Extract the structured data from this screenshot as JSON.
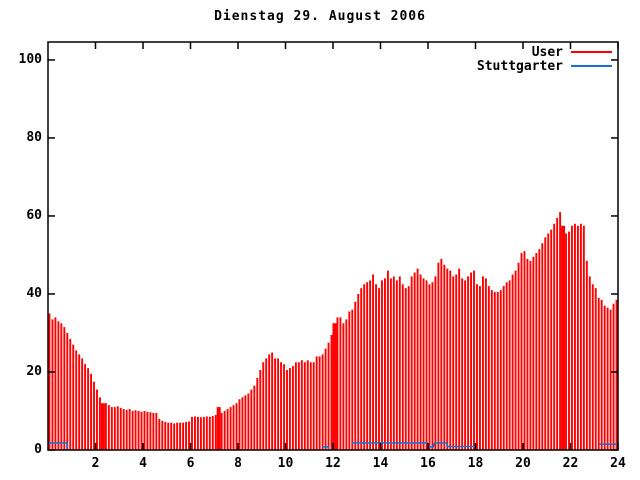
{
  "chart_data": {
    "type": "bar",
    "title": "Dienstag 29. August 2006",
    "xlabel": "",
    "ylabel": "",
    "xlim": [
      0,
      24
    ],
    "ylim": [
      0,
      104.6
    ],
    "grid": false,
    "legend_position": "top-right-inside",
    "xticks": [
      2,
      4,
      6,
      8,
      10,
      12,
      14,
      16,
      18,
      20,
      22,
      24
    ],
    "yticks": [
      0,
      20,
      40,
      60,
      80,
      100
    ],
    "sample_interval_hours": 0.125,
    "legend": [
      {
        "label": "User",
        "color": "#ff0000"
      },
      {
        "label": "Stuttgarter",
        "color": "#1874cd"
      }
    ],
    "series": [
      {
        "name": "User",
        "style": "impulses",
        "color": "#ff0000",
        "values": [
          35,
          33.5,
          34,
          33,
          32.5,
          31.5,
          30,
          28.5,
          27,
          25.5,
          24.5,
          23.5,
          22,
          21,
          19.5,
          17.5,
          15.5,
          13.5,
          12,
          12,
          11.5,
          11,
          11,
          11.2,
          10.8,
          10.5,
          10.3,
          10.5,
          10,
          10.2,
          10,
          9.8,
          10,
          9.8,
          9.7,
          9.5,
          9.5,
          8,
          7.5,
          7.2,
          7,
          7,
          6.8,
          7,
          7,
          7,
          7.2,
          7.3,
          8.5,
          8.6,
          8.5,
          8.4,
          8.5,
          8.6,
          8.5,
          8.7,
          9,
          11,
          9.5,
          10,
          10.5,
          11,
          11.5,
          12,
          13,
          13.5,
          14,
          14.5,
          15.5,
          16.5,
          18.5,
          20.5,
          22.5,
          23.5,
          24.5,
          25,
          23.5,
          23.5,
          22.5,
          22,
          20.5,
          21,
          21.5,
          22.5,
          22.5,
          23,
          22.5,
          23,
          22.5,
          22.5,
          24,
          24,
          24.5,
          26,
          27.5,
          29.5,
          32.5,
          34,
          34,
          32.5,
          33.5,
          35.5,
          36,
          38,
          40,
          41.5,
          42.5,
          43,
          43.5,
          45,
          42.5,
          41.5,
          43.5,
          44,
          46,
          44,
          44.5,
          43.5,
          44.5,
          42.5,
          41.5,
          42,
          44.5,
          45.5,
          46.5,
          45,
          44,
          43.5,
          42.5,
          43,
          44.5,
          48,
          49,
          47.5,
          46.5,
          46,
          44.5,
          45,
          46.5,
          44,
          43.5,
          44.5,
          45.5,
          46,
          42.5,
          42,
          44.5,
          44,
          42,
          41,
          40.5,
          40.5,
          41,
          42,
          43,
          43.5,
          45,
          46,
          48,
          50.5,
          51,
          49,
          48.5,
          49.5,
          50.5,
          51.5,
          53,
          54.5,
          55.5,
          56.5,
          58,
          59.5,
          61,
          57.5,
          55.5,
          56,
          57.5,
          58,
          57.5,
          58,
          57.5,
          48.5,
          44.5,
          42.5,
          41.5,
          39,
          38.5,
          37,
          36.5,
          36,
          37.5,
          38.5
        ],
        "bold_marker_indices": [
          18,
          57,
          96,
          173
        ]
      },
      {
        "name": "Stuttgarter",
        "style": "steps",
        "color": "#1874cd",
        "segments_hour_start_end_value": [
          [
            0,
            0.8,
            1.8
          ],
          [
            11.55,
            11.8,
            0.8
          ],
          [
            12.8,
            16.0,
            1.8
          ],
          [
            16.0,
            16.25,
            0.8
          ],
          [
            16.25,
            16.8,
            1.8
          ],
          [
            16.8,
            18.0,
            0.9
          ],
          [
            23.2,
            24.0,
            1.5
          ]
        ]
      }
    ]
  },
  "colors": {
    "background": "#ffffff",
    "text": "#000000",
    "axis": "#000000",
    "user_series": "#ff0000",
    "stuttgarter_series": "#1874cd"
  }
}
